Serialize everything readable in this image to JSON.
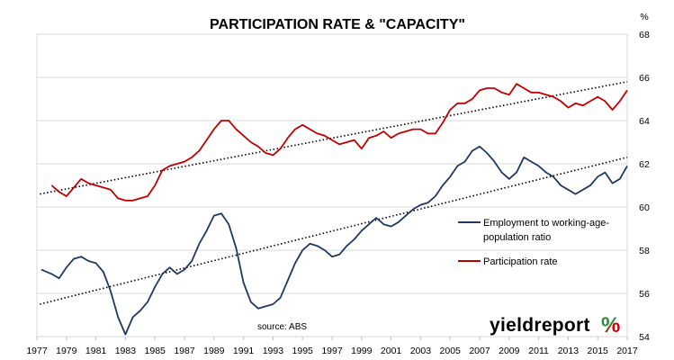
{
  "chart_data": {
    "type": "line",
    "title": "PARTICIPATION RATE & \"CAPACITY\"",
    "y_unit": "%",
    "ylim": [
      54,
      68
    ],
    "y_ticks": [
      "54",
      "56",
      "58",
      "60",
      "62",
      "64",
      "66",
      "68"
    ],
    "xlim": [
      1977,
      2017
    ],
    "x_ticks": [
      "1977",
      "1979",
      "1981",
      "1983",
      "1985",
      "1987",
      "1989",
      "1991",
      "1993",
      "1995",
      "1997",
      "1999",
      "2001",
      "2003",
      "2005",
      "2007",
      "2009",
      "2011",
      "2013",
      "2015",
      "2017"
    ],
    "grid": "horizontal",
    "legend_position": "right",
    "series": [
      {
        "name": "Participation rate",
        "color": "#c00000",
        "x": [
          1978.0,
          1978.5,
          1979.0,
          1979.5,
          1980.0,
          1980.5,
          1981.0,
          1981.5,
          1982.0,
          1982.5,
          1983.0,
          1983.5,
          1984.0,
          1984.5,
          1985.0,
          1985.5,
          1986.0,
          1986.5,
          1987.0,
          1987.5,
          1988.0,
          1988.5,
          1989.0,
          1989.5,
          1990.0,
          1990.5,
          1991.0,
          1991.5,
          1992.0,
          1992.5,
          1993.0,
          1993.5,
          1994.0,
          1994.5,
          1995.0,
          1995.5,
          1996.0,
          1996.5,
          1997.0,
          1997.5,
          1998.0,
          1998.5,
          1999.0,
          1999.5,
          2000.0,
          2000.5,
          2001.0,
          2001.5,
          2002.0,
          2002.5,
          2003.0,
          2003.5,
          2004.0,
          2004.5,
          2005.0,
          2005.5,
          2006.0,
          2006.5,
          2007.0,
          2007.5,
          2008.0,
          2008.5,
          2009.0,
          2009.5,
          2010.0,
          2010.5,
          2011.0,
          2011.5,
          2012.0,
          2012.5,
          2013.0,
          2013.5,
          2014.0,
          2014.5,
          2015.0,
          2015.5,
          2016.0,
          2016.5,
          2017.0
        ],
        "values": [
          61.0,
          60.7,
          60.5,
          60.9,
          61.3,
          61.1,
          61.0,
          60.9,
          60.8,
          60.4,
          60.3,
          60.3,
          60.4,
          60.5,
          61.0,
          61.7,
          61.9,
          62.0,
          62.1,
          62.3,
          62.6,
          63.1,
          63.6,
          64.0,
          64.0,
          63.6,
          63.3,
          63.0,
          62.8,
          62.5,
          62.4,
          62.7,
          63.2,
          63.6,
          63.8,
          63.6,
          63.4,
          63.3,
          63.1,
          62.9,
          63.0,
          63.1,
          62.7,
          63.2,
          63.3,
          63.5,
          63.2,
          63.4,
          63.5,
          63.6,
          63.6,
          63.4,
          63.4,
          63.9,
          64.5,
          64.8,
          64.8,
          65.0,
          65.4,
          65.5,
          65.5,
          65.3,
          65.2,
          65.7,
          65.5,
          65.3,
          65.3,
          65.2,
          65.1,
          64.9,
          64.6,
          64.8,
          64.7,
          64.9,
          65.1,
          64.9,
          64.5,
          64.9,
          65.4
        ]
      },
      {
        "name": "Employment to working-age-population ratio",
        "color": "#1f3864",
        "x": [
          1977.3,
          1978.0,
          1978.5,
          1979.0,
          1979.5,
          1980.0,
          1980.5,
          1981.0,
          1981.5,
          1982.0,
          1982.5,
          1983.0,
          1983.5,
          1984.0,
          1984.5,
          1985.0,
          1985.5,
          1986.0,
          1986.5,
          1987.0,
          1987.5,
          1988.0,
          1988.5,
          1989.0,
          1989.5,
          1990.0,
          1990.5,
          1991.0,
          1991.5,
          1992.0,
          1992.5,
          1993.0,
          1993.5,
          1994.0,
          1994.5,
          1995.0,
          1995.5,
          1996.0,
          1996.5,
          1997.0,
          1997.5,
          1998.0,
          1998.5,
          1999.0,
          1999.5,
          2000.0,
          2000.5,
          2001.0,
          2001.5,
          2002.0,
          2002.5,
          2003.0,
          2003.5,
          2004.0,
          2004.5,
          2005.0,
          2005.5,
          2006.0,
          2006.5,
          2007.0,
          2007.5,
          2008.0,
          2008.5,
          2009.0,
          2009.5,
          2010.0,
          2010.5,
          2011.0,
          2011.5,
          2012.0,
          2012.5,
          2013.0,
          2013.5,
          2014.0,
          2014.5,
          2015.0,
          2015.5,
          2016.0,
          2016.5,
          2017.0
        ],
        "values": [
          57.1,
          56.9,
          56.7,
          57.2,
          57.6,
          57.7,
          57.5,
          57.4,
          57.0,
          56.1,
          54.9,
          54.1,
          54.9,
          55.2,
          55.6,
          56.3,
          56.9,
          57.2,
          56.9,
          57.1,
          57.5,
          58.3,
          58.9,
          59.6,
          59.7,
          59.2,
          58.1,
          56.5,
          55.6,
          55.3,
          55.4,
          55.5,
          55.8,
          56.6,
          57.4,
          58.0,
          58.3,
          58.2,
          58.0,
          57.7,
          57.8,
          58.2,
          58.5,
          58.9,
          59.2,
          59.5,
          59.2,
          59.1,
          59.3,
          59.6,
          59.9,
          60.1,
          60.2,
          60.5,
          61.0,
          61.4,
          61.9,
          62.1,
          62.6,
          62.8,
          62.5,
          62.1,
          61.6,
          61.3,
          61.6,
          62.3,
          62.1,
          61.9,
          61.6,
          61.4,
          61.0,
          60.8,
          60.6,
          60.8,
          61.0,
          61.4,
          61.6,
          61.1,
          61.3,
          61.9
        ]
      }
    ],
    "trendlines": [
      {
        "series": "Participation rate",
        "x": [
          1977.2,
          2017.0
        ],
        "values": [
          60.6,
          65.8
        ]
      },
      {
        "series": "Employment to working-age-population ratio",
        "x": [
          1977.2,
          2017.0
        ],
        "values": [
          55.5,
          62.3
        ]
      }
    ],
    "annotations": {
      "source": "source: ABS"
    }
  },
  "branding": {
    "logo_text": "yieldreport",
    "logo_symbol": "%",
    "logo_dark": "#000000",
    "logo_green": "#2e8b3a",
    "logo_red": "#d40000"
  }
}
